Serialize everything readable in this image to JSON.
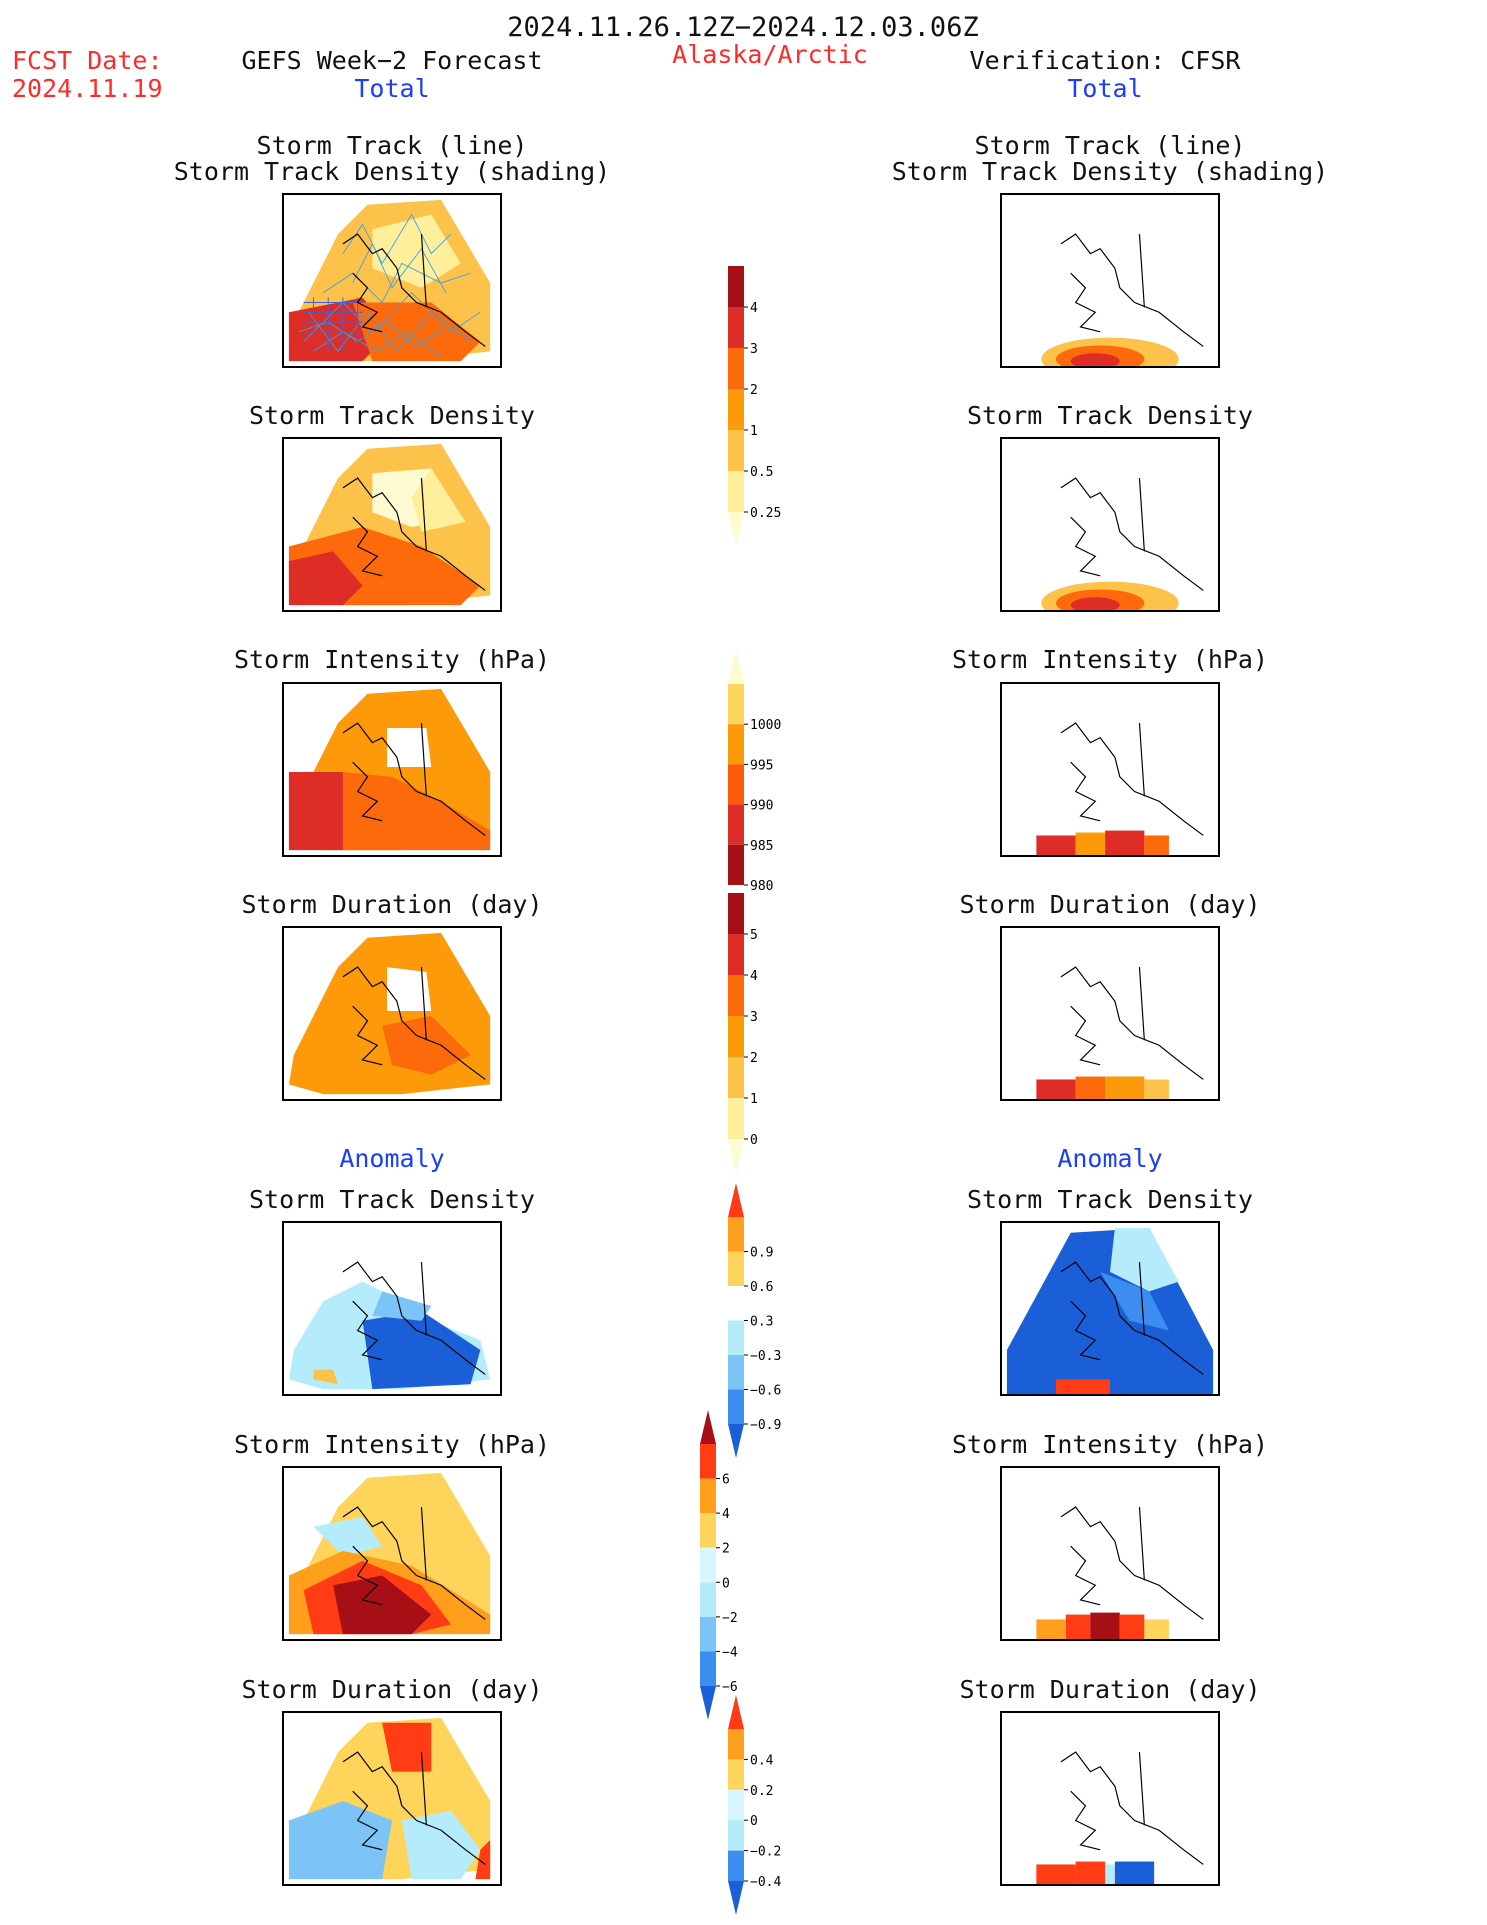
{
  "header": {
    "date_range": "2024.11.26.12Z−2024.12.03.06Z",
    "fcst_label": "FCST Date:",
    "fcst_date": "2024.11.19",
    "left_title": "GEFS Week−2 Forecast",
    "region": "Alaska/Arctic",
    "right_title": "Verification: CFSR"
  },
  "sections": {
    "total": "Total",
    "anomaly": "Anomaly"
  },
  "panel_titles": {
    "track_line": "Storm Track (line)",
    "track_density_shading": "Storm Track Density (shading)",
    "track_density": "Storm Track Density",
    "intensity": "Storm Intensity (hPa)",
    "duration": "Storm Duration (day)"
  },
  "colorbars": {
    "total_density": {
      "labels": [
        "4",
        "3",
        "2",
        "1",
        "0.5",
        "0.25"
      ],
      "colors": [
        "#a50f15",
        "#de2d26",
        "#fc6a0c",
        "#fd9a0a",
        "#fdc24a",
        "#ffee9a",
        "#fffbd0"
      ]
    },
    "total_intensity": {
      "labels": [
        "1000",
        "995",
        "990",
        "985",
        "980"
      ],
      "colors": [
        "#fffbd0",
        "#fdd55a",
        "#fd9a0a",
        "#fc5a0c",
        "#de2d26",
        "#a50f15"
      ]
    },
    "total_duration": {
      "labels": [
        "5",
        "4",
        "3",
        "2",
        "1",
        "0"
      ],
      "colors": [
        "#a50f15",
        "#de2d26",
        "#fc6a0c",
        "#fd9a0a",
        "#fdc24a",
        "#ffee9a",
        "#fffbd0"
      ]
    },
    "anom_density": {
      "labels": [
        "0.9",
        "0.6",
        "0.3",
        "−0.3",
        "−0.6",
        "−0.9"
      ],
      "colors": [
        "#ff3c14",
        "#ff9f1c",
        "#ffd45a",
        "#ffffff",
        "#b5ecfb",
        "#7bc4f5",
        "#3b8ef0",
        "#1a5fd8"
      ]
    },
    "anom_intensity": {
      "labels": [
        "6",
        "4",
        "2",
        "0",
        "−2",
        "−4",
        "−6"
      ],
      "colors": [
        "#a50f15",
        "#ff3c14",
        "#ff9f1c",
        "#ffd45a",
        "#d8f6ff",
        "#b5ecfb",
        "#7bc4f5",
        "#3b8ef0",
        "#1a5fd8"
      ]
    },
    "anom_duration": {
      "labels": [
        "0.4",
        "0.2",
        "0",
        "−0.2",
        "−0.4"
      ],
      "colors": [
        "#ff3c14",
        "#ff9f1c",
        "#ffd45a",
        "#d8f6ff",
        "#b5ecfb",
        "#3b8ef0",
        "#1a5fd8"
      ]
    }
  }
}
